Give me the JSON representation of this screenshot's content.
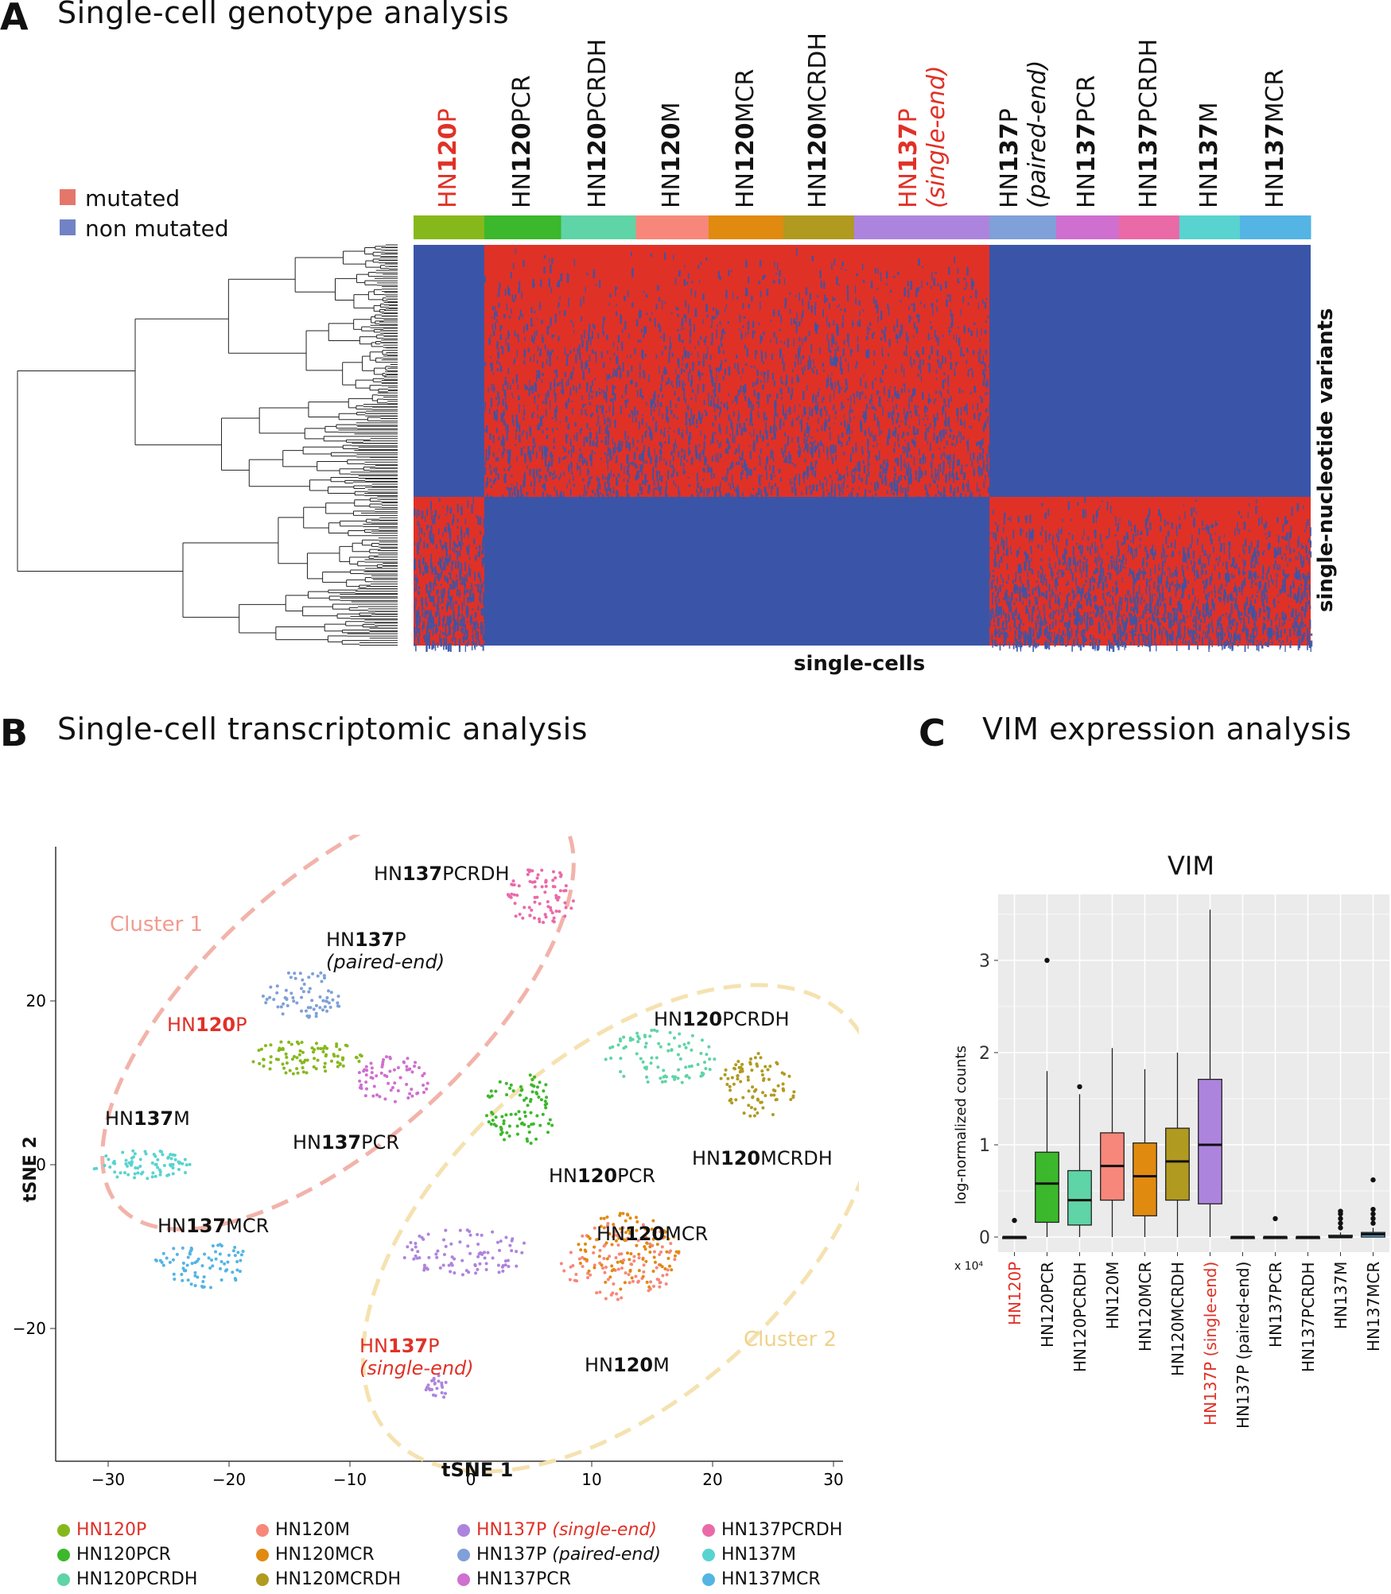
{
  "panelA": {
    "letter": "A",
    "title": "Single-cell genotype analysis",
    "legend": [
      {
        "label": "mutated",
        "color": "#e5766b"
      },
      {
        "label": "non mutated",
        "color": "#7183c4"
      }
    ],
    "columns": [
      {
        "pre": "HN",
        "num": "120",
        "suf": "P",
        "extra": "",
        "red": true,
        "color": "#86b81c"
      },
      {
        "pre": "HN",
        "num": "120",
        "suf": "PCR",
        "extra": "",
        "red": false,
        "color": "#3bb82b"
      },
      {
        "pre": "HN",
        "num": "120",
        "suf": "PCRDH",
        "extra": "",
        "red": false,
        "color": "#5fd4a6"
      },
      {
        "pre": "HN",
        "num": "120",
        "suf": "M",
        "extra": "",
        "red": false,
        "color": "#f7877a"
      },
      {
        "pre": "HN",
        "num": "120",
        "suf": "MCR",
        "extra": "",
        "red": false,
        "color": "#e08a10"
      },
      {
        "pre": "HN",
        "num": "120",
        "suf": "MCRDH",
        "extra": "",
        "red": false,
        "color": "#b09a20"
      },
      {
        "pre": "HN",
        "num": "137",
        "suf": "P",
        "extra": "(single-end)",
        "red": true,
        "color": "#ad84dd"
      },
      {
        "pre": "HN",
        "num": "137",
        "suf": "P",
        "extra": "(paired-end)",
        "red": false,
        "color": "#7fa0d8"
      },
      {
        "pre": "HN",
        "num": "137",
        "suf": "PCR",
        "extra": "",
        "red": false,
        "color": "#cf6fd0"
      },
      {
        "pre": "HN",
        "num": "137",
        "suf": "PCRDH",
        "extra": "",
        "red": false,
        "color": "#ea6aa8"
      },
      {
        "pre": "HN",
        "num": "137",
        "suf": "M",
        "extra": "",
        "red": false,
        "color": "#59d3d0"
      },
      {
        "pre": "HN",
        "num": "137",
        "suf": "MCR",
        "extra": "",
        "red": false,
        "color": "#54b4e4"
      }
    ],
    "y_axis_label": "single-nucleotide variants",
    "x_axis_label": "single-cells",
    "heatmap_colors": {
      "mutated": "#e03127",
      "non_mutated": "#3a55a8"
    }
  },
  "panelB": {
    "letter": "B",
    "title": "Single-cell transcriptomic analysis",
    "xlabel": "tSNE 1",
    "ylabel": "tSNE 2",
    "x_ticks": [
      "−30",
      "−20",
      "−10",
      "0",
      "10",
      "20",
      "30"
    ],
    "y_ticks": [
      "20",
      "0",
      "−20"
    ],
    "cluster1": "Cluster 1",
    "cluster2": "Cluster 2",
    "labels": [
      {
        "pre": "HN",
        "num": "137",
        "suf": "PCRDH",
        "extra": "",
        "red": false
      },
      {
        "pre": "HN",
        "num": "137",
        "suf": "P",
        "extra": "(paired-end)",
        "red": false
      },
      {
        "pre": "HN",
        "num": "120",
        "suf": "P",
        "extra": "",
        "red": true
      },
      {
        "pre": "HN",
        "num": "137",
        "suf": "M",
        "extra": "",
        "red": false
      },
      {
        "pre": "HN",
        "num": "137",
        "suf": "PCR",
        "extra": "",
        "red": false
      },
      {
        "pre": "HN",
        "num": "137",
        "suf": "MCR",
        "extra": "",
        "red": false
      },
      {
        "pre": "HN",
        "num": "120",
        "suf": "PCRDH",
        "extra": "",
        "red": false
      },
      {
        "pre": "HN",
        "num": "120",
        "suf": "MCRDH",
        "extra": "",
        "red": false
      },
      {
        "pre": "HN",
        "num": "120",
        "suf": "PCR",
        "extra": "",
        "red": false
      },
      {
        "pre": "HN",
        "num": "120",
        "suf": "MCR",
        "extra": "",
        "red": false
      },
      {
        "pre": "HN",
        "num": "137",
        "suf": "P",
        "extra": "(single-end)",
        "red": true
      },
      {
        "pre": "HN",
        "num": "120",
        "suf": "M",
        "extra": "",
        "red": false
      }
    ],
    "legend": [
      {
        "name": "HN120P",
        "extra": "",
        "red": true,
        "color": "#86b81c"
      },
      {
        "name": "HN120PCR",
        "extra": "",
        "red": false,
        "color": "#3bb82b"
      },
      {
        "name": "HN120PCRDH",
        "extra": "",
        "red": false,
        "color": "#5fd4a6"
      },
      {
        "name": "HN120M",
        "extra": "",
        "red": false,
        "color": "#f7877a"
      },
      {
        "name": "HN120MCR",
        "extra": "",
        "red": false,
        "color": "#e08a10"
      },
      {
        "name": "HN120MCRDH",
        "extra": "",
        "red": false,
        "color": "#b09a20"
      },
      {
        "name": "HN137P ",
        "extra": "(single-end)",
        "red": true,
        "color": "#ad84dd"
      },
      {
        "name": "HN137P ",
        "extra": "(paired-end)",
        "red": false,
        "color": "#7fa0d8"
      },
      {
        "name": "HN137PCR",
        "extra": "",
        "red": false,
        "color": "#cf6fd0"
      },
      {
        "name": "HN137PCRDH",
        "extra": "",
        "red": false,
        "color": "#ea6aa8"
      },
      {
        "name": "HN137M",
        "extra": "",
        "red": false,
        "color": "#59d3d0"
      },
      {
        "name": "HN137MCR",
        "extra": "",
        "red": false,
        "color": "#54b4e4"
      }
    ]
  },
  "panelC": {
    "letter": "C",
    "title": "VIM expression analysis",
    "plot_title": "VIM",
    "ylabel": "log-normalized counts",
    "y_ticks": [
      "3",
      "2",
      "1",
      "0"
    ],
    "scale_note": "x 10⁴",
    "chart_data": {
      "type": "box",
      "title": "VIM",
      "ylabel": "log-normalized counts",
      "ylim": [
        -0.3,
        3.6
      ],
      "categories": [
        "HN120P",
        "HN120PCR",
        "HN120PCRDH",
        "HN120M",
        "HN120MCR",
        "HN120MCRDH",
        "HN137P (single-end)",
        "HN137P (paired-end)",
        "HN137PCR",
        "HN137PCRDH",
        "HN137M",
        "HN137MCR"
      ],
      "red_categories": [
        "HN120P",
        "HN137P (single-end)"
      ],
      "boxes": [
        {
          "min": 0,
          "q1": 0,
          "median": 0,
          "q3": 0,
          "max": 0,
          "outliers": [
            0.18
          ],
          "color": "#86b81c"
        },
        {
          "min": 0,
          "q1": 0.16,
          "median": 0.58,
          "q3": 0.92,
          "max": 1.8,
          "outliers": [
            3.0
          ],
          "color": "#3bb82b"
        },
        {
          "min": 0,
          "q1": 0.13,
          "median": 0.4,
          "q3": 0.72,
          "max": 1.55,
          "outliers": [
            1.63
          ],
          "color": "#5fd4a6"
        },
        {
          "min": 0,
          "q1": 0.4,
          "median": 0.77,
          "q3": 1.13,
          "max": 2.05,
          "outliers": [],
          "color": "#f7877a"
        },
        {
          "min": 0,
          "q1": 0.23,
          "median": 0.66,
          "q3": 1.02,
          "max": 1.82,
          "outliers": [],
          "color": "#e08a10"
        },
        {
          "min": 0,
          "q1": 0.4,
          "median": 0.82,
          "q3": 1.18,
          "max": 2.0,
          "outliers": [],
          "color": "#b09a20"
        },
        {
          "min": 0,
          "q1": 0.36,
          "median": 1.0,
          "q3": 1.71,
          "max": 3.55,
          "outliers": [],
          "color": "#ad84dd"
        },
        {
          "min": 0,
          "q1": 0,
          "median": 0,
          "q3": 0,
          "max": 0,
          "outliers": [],
          "color": "#7fa0d8"
        },
        {
          "min": 0,
          "q1": 0,
          "median": 0,
          "q3": 0,
          "max": 0,
          "outliers": [
            0.2
          ],
          "color": "#cf6fd0"
        },
        {
          "min": 0,
          "q1": 0,
          "median": 0,
          "q3": 0,
          "max": 0,
          "outliers": [],
          "color": "#ea6aa8"
        },
        {
          "min": 0,
          "q1": 0,
          "median": 0,
          "q3": 0.02,
          "max": 0.05,
          "outliers": [
            0.1,
            0.15,
            0.2,
            0.25,
            0.28
          ],
          "color": "#59d3d0"
        },
        {
          "min": 0,
          "q1": 0,
          "median": 0.03,
          "q3": 0.05,
          "max": 0.1,
          "outliers": [
            0.15,
            0.2,
            0.25,
            0.3,
            0.62
          ],
          "color": "#54b4e4"
        }
      ]
    }
  }
}
